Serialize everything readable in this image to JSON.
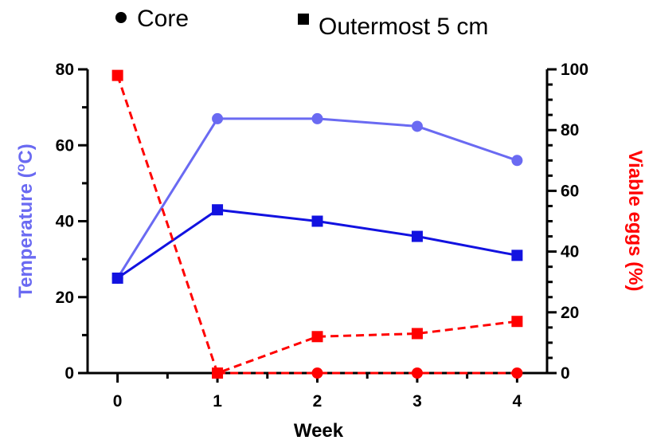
{
  "chart_data": {
    "type": "line",
    "legend": [
      {
        "label": "Core",
        "marker": "circle"
      },
      {
        "label": "Outermost 5 cm",
        "marker": "square"
      }
    ],
    "xlabel": "Week",
    "ylabel_left": "Temperature (°C)",
    "ylabel_left_parts": {
      "text": "Temperature (",
      "sup": "o",
      "unit": "C)"
    },
    "ylabel_right": "Viable eggs (%)",
    "x_ticks": [
      "0",
      "1",
      "2",
      "3",
      "4"
    ],
    "y_left_ticks": [
      "0",
      "20",
      "40",
      "60",
      "80"
    ],
    "y_right_ticks": [
      "0",
      "20",
      "40",
      "60",
      "80",
      "100"
    ],
    "xlim": [
      -0.3,
      4.3
    ],
    "ylim_left": [
      0,
      80
    ],
    "ylim_right": [
      0,
      100
    ],
    "grid": false,
    "legend_position": "top",
    "series": [
      {
        "name": "Core",
        "axis": "left",
        "marker": "circle",
        "style": "solid",
        "color": "#6a6af2",
        "x": [
          0,
          1,
          2,
          3,
          4
        ],
        "values": [
          25,
          67,
          67,
          65,
          56
        ]
      },
      {
        "name": "Outermost 5 cm",
        "axis": "left",
        "marker": "square",
        "style": "solid",
        "color": "#1212e0",
        "x": [
          0,
          1,
          2,
          3,
          4
        ],
        "values": [
          25,
          43,
          40,
          36,
          31
        ]
      },
      {
        "name": "Core",
        "axis": "right",
        "marker": "circle",
        "style": "dashed",
        "color": "#ff0000",
        "x": [
          1,
          2,
          3,
          4
        ],
        "values": [
          0,
          0,
          0,
          0
        ]
      },
      {
        "name": "Outermost 5 cm",
        "axis": "right",
        "marker": "square",
        "style": "dashed",
        "color": "#ff0000",
        "x": [
          0,
          1,
          2,
          3,
          4
        ],
        "values": [
          98,
          0,
          12,
          13,
          17
        ]
      }
    ],
    "colors": {
      "left_axis_title": "#6a6af2",
      "right_axis_title": "#ff0000",
      "axes": "#000000"
    }
  }
}
